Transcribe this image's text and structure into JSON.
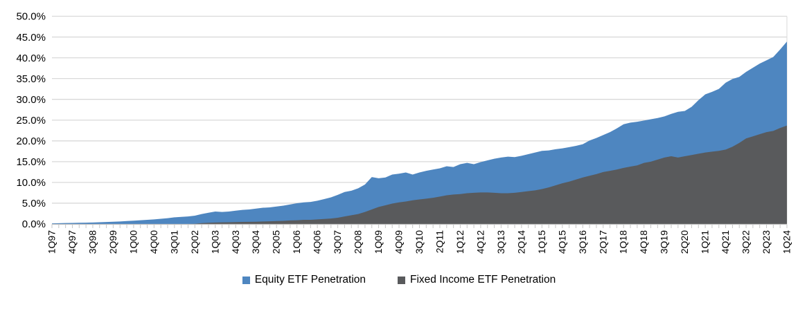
{
  "chart_data": {
    "type": "area",
    "mode": "overlapping",
    "title": "",
    "x_frequency": "quarterly",
    "x_start": "1Q97",
    "x_end": "1Q24",
    "x_label_every_n_points": 3,
    "x_tick_labels": [
      "1Q97",
      "4Q97",
      "3Q98",
      "2Q99",
      "1Q00",
      "4Q00",
      "3Q01",
      "2Q02",
      "1Q03",
      "4Q03",
      "3Q04",
      "2Q05",
      "1Q06",
      "4Q06",
      "3Q07",
      "2Q08",
      "1Q09",
      "4Q09",
      "3Q10",
      "2Q11",
      "1Q12",
      "4Q12",
      "3Q13",
      "2Q14",
      "1Q15",
      "4Q15",
      "3Q16",
      "2Q17",
      "1Q18",
      "4Q18",
      "3Q19",
      "2Q20",
      "1Q21",
      "4Q21",
      "3Q22",
      "2Q23",
      "1Q24"
    ],
    "y_tick_labels": [
      "0.0%",
      "5.0%",
      "10.0%",
      "15.0%",
      "20.0%",
      "25.0%",
      "30.0%",
      "35.0%",
      "40.0%",
      "45.0%",
      "50.0%"
    ],
    "ylim": [
      0,
      50
    ],
    "y_unit": "%",
    "grid": "horizontal",
    "legend_position": "bottom",
    "series": [
      {
        "name": "Equity ETF Penetration",
        "color": "#4E86C0",
        "values": [
          0.15,
          0.18,
          0.22,
          0.25,
          0.3,
          0.32,
          0.35,
          0.42,
          0.48,
          0.55,
          0.6,
          0.7,
          0.8,
          0.9,
          1.0,
          1.1,
          1.25,
          1.4,
          1.6,
          1.7,
          1.8,
          2.0,
          2.4,
          2.7,
          3.0,
          2.9,
          3.0,
          3.2,
          3.4,
          3.5,
          3.7,
          3.9,
          4.0,
          4.2,
          4.4,
          4.7,
          5.0,
          5.2,
          5.3,
          5.6,
          6.0,
          6.4,
          7.0,
          7.7,
          8.0,
          8.6,
          9.5,
          11.3,
          11.0,
          11.2,
          11.9,
          12.1,
          12.4,
          11.9,
          12.4,
          12.8,
          13.1,
          13.4,
          13.9,
          13.7,
          14.4,
          14.7,
          14.4,
          14.9,
          15.3,
          15.7,
          16.0,
          16.2,
          16.1,
          16.4,
          16.8,
          17.2,
          17.6,
          17.7,
          18.0,
          18.2,
          18.5,
          18.8,
          19.2,
          20.1,
          20.7,
          21.4,
          22.1,
          23.0,
          24.0,
          24.4,
          24.6,
          24.9,
          25.2,
          25.5,
          25.9,
          26.5,
          27.0,
          27.2,
          28.2,
          29.8,
          31.2,
          31.8,
          32.5,
          34.0,
          34.9,
          35.4,
          36.6,
          37.6,
          38.6,
          39.4,
          40.2,
          42.0,
          43.9
        ]
      },
      {
        "name": "Fixed Income ETF Penetration",
        "color": "#595A5C",
        "values": [
          0,
          0,
          0,
          0,
          0,
          0,
          0,
          0,
          0,
          0,
          0,
          0,
          0,
          0,
          0,
          0,
          0,
          0,
          0,
          0,
          0,
          0.05,
          0.2,
          0.3,
          0.35,
          0.4,
          0.42,
          0.45,
          0.5,
          0.52,
          0.55,
          0.6,
          0.65,
          0.7,
          0.75,
          0.85,
          0.9,
          1.0,
          1.0,
          1.1,
          1.2,
          1.3,
          1.5,
          1.8,
          2.1,
          2.4,
          2.9,
          3.5,
          4.1,
          4.5,
          4.9,
          5.2,
          5.4,
          5.7,
          5.9,
          6.1,
          6.3,
          6.6,
          6.9,
          7.1,
          7.2,
          7.4,
          7.5,
          7.6,
          7.6,
          7.5,
          7.4,
          7.4,
          7.5,
          7.7,
          7.9,
          8.1,
          8.4,
          8.8,
          9.3,
          9.8,
          10.2,
          10.7,
          11.2,
          11.6,
          12.0,
          12.5,
          12.8,
          13.1,
          13.5,
          13.8,
          14.1,
          14.7,
          15.0,
          15.5,
          16.0,
          16.3,
          16.0,
          16.3,
          16.6,
          16.9,
          17.2,
          17.4,
          17.6,
          17.9,
          18.6,
          19.5,
          20.6,
          21.1,
          21.6,
          22.1,
          22.4,
          23.1,
          23.7
        ]
      }
    ]
  },
  "colors": {
    "background": "#FFFFFF",
    "gridline": "#D9D9D9",
    "axis": "#BFBFBF",
    "tick": "#C6C6C6",
    "text": "#000000"
  }
}
